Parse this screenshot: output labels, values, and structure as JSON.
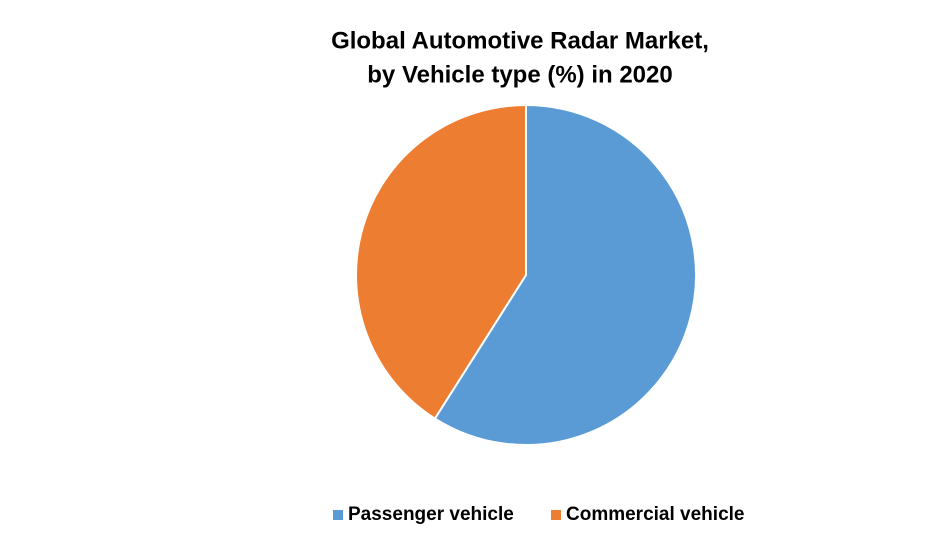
{
  "chart_data": {
    "type": "pie",
    "title": [
      "Global Automotive Radar Market,",
      "by Vehicle type (%) in 2020"
    ],
    "categories": [
      "Passenger vehicle",
      "Commercial vehicle"
    ],
    "values": [
      59,
      41
    ],
    "colors": [
      "#5b9bd5",
      "#ed7d31"
    ],
    "legend": "bottom"
  }
}
